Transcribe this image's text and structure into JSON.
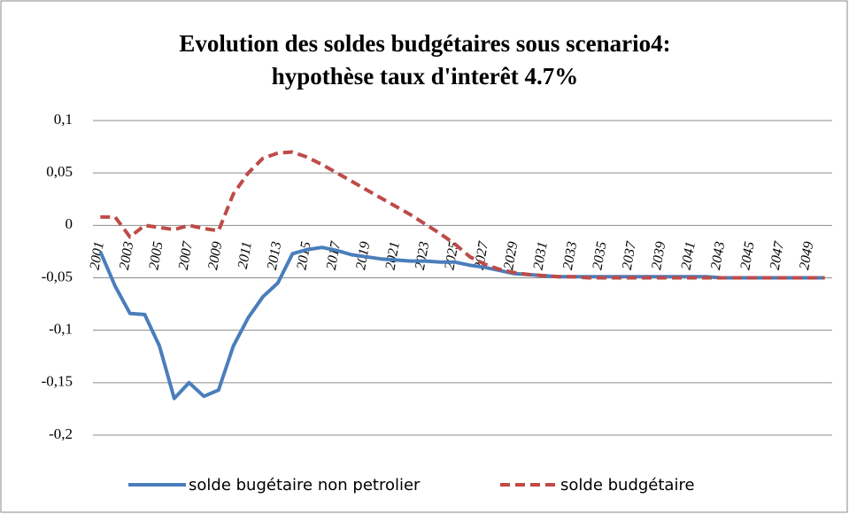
{
  "chart_data": {
    "type": "line",
    "title": [
      "Evolution des soldes budgétaires sous scenario4:",
      "hypothèse taux d'interêt 4.7%"
    ],
    "categories": [
      "2001",
      null,
      "2003",
      null,
      "2005",
      null,
      "2007",
      null,
      "2009",
      null,
      "2011",
      null,
      "2013",
      null,
      "2015",
      null,
      "2017",
      null,
      "2019",
      null,
      "2021",
      null,
      "2023",
      null,
      "2025",
      null,
      "2027",
      null,
      "2029",
      null,
      "2031",
      null,
      "2033",
      null,
      "2035",
      null,
      "2037",
      null,
      "2039",
      null,
      "2041",
      null,
      "2043",
      null,
      "2045",
      null,
      "2047",
      null,
      "2049",
      null
    ],
    "series": [
      {
        "name": "solde bugétaire non petrolier",
        "color": "#4a7ebb",
        "dash": false,
        "values": [
          -0.025,
          -0.058,
          -0.084,
          -0.085,
          -0.115,
          -0.165,
          -0.15,
          -0.163,
          -0.157,
          -0.115,
          -0.088,
          -0.068,
          -0.055,
          -0.027,
          -0.023,
          -0.021,
          -0.024,
          -0.028,
          -0.03,
          -0.032,
          -0.033,
          -0.034,
          -0.034,
          -0.035,
          -0.035,
          -0.038,
          -0.04,
          -0.043,
          -0.046,
          -0.047,
          -0.048,
          -0.049,
          -0.049,
          -0.049,
          -0.049,
          -0.049,
          -0.049,
          -0.049,
          -0.049,
          -0.049,
          -0.049,
          -0.049,
          -0.05,
          -0.05,
          -0.05,
          -0.05,
          -0.05,
          -0.05,
          -0.05,
          -0.05
        ]
      },
      {
        "name": "solde budgétaire",
        "color": "#be4b48",
        "dash": true,
        "values": [
          0.008,
          0.008,
          -0.011,
          0.0,
          -0.002,
          -0.004,
          0.0,
          -0.003,
          -0.005,
          0.03,
          0.05,
          0.064,
          0.069,
          0.07,
          0.065,
          0.058,
          0.05,
          0.042,
          0.034,
          0.026,
          0.018,
          0.01,
          0.001,
          -0.008,
          -0.018,
          -0.03,
          -0.037,
          -0.042,
          -0.045,
          -0.047,
          -0.048,
          -0.049,
          -0.049,
          -0.05,
          -0.05,
          -0.05,
          -0.05,
          -0.05,
          -0.05,
          -0.05,
          -0.05,
          -0.05,
          -0.05,
          -0.05,
          -0.05,
          -0.05,
          -0.05,
          -0.05,
          -0.05,
          -0.05
        ]
      }
    ],
    "ylim": [
      -0.2,
      0.1
    ],
    "yticks": [
      {
        "value": -0.2,
        "label": "-0,2"
      },
      {
        "value": -0.15,
        "label": "-0,15"
      },
      {
        "value": -0.1,
        "label": "-0,1"
      },
      {
        "value": -0.05,
        "label": "-0,05"
      },
      0,
      {
        "value": 0.05,
        "label": "0,05"
      },
      {
        "value": 0.1,
        "label": "0,1"
      }
    ],
    "grid": true
  }
}
